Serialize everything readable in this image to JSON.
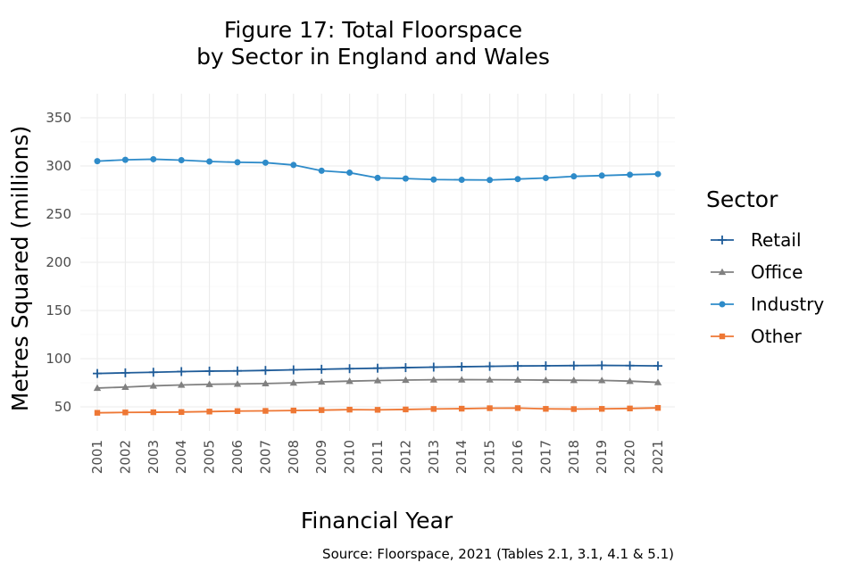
{
  "chart_data": {
    "type": "line",
    "title_lines": [
      "Figure 17: Total Floorspace",
      "by Sector in England and Wales"
    ],
    "xlabel": "Financial Year",
    "ylabel": "Metres Squared (millions)",
    "caption": "Source: Floorspace, 2021 (Tables 2.1, 3.1, 4.1 & 5.1)",
    "x": [
      "2001",
      "2002",
      "2003",
      "2004",
      "2005",
      "2006",
      "2007",
      "2008",
      "2009",
      "2010",
      "2011",
      "2012",
      "2013",
      "2014",
      "2015",
      "2016",
      "2017",
      "2018",
      "2019",
      "2020",
      "2021"
    ],
    "yticks": [
      50,
      100,
      150,
      200,
      250,
      300,
      350
    ],
    "ylim": [
      25,
      375
    ],
    "grid": true,
    "legend": {
      "title": "Sector",
      "position": "right"
    },
    "series": [
      {
        "name": "Retail",
        "color": "#1f5c99",
        "marker": "plus",
        "values": [
          84.6,
          85.3,
          85.9,
          86.6,
          87.1,
          87.3,
          87.8,
          88.4,
          89.0,
          89.6,
          90.1,
          90.7,
          91.2,
          91.6,
          92.0,
          92.4,
          92.6,
          92.8,
          93.0,
          92.8,
          92.5
        ]
      },
      {
        "name": "Office",
        "color": "#808080",
        "marker": "triangle",
        "values": [
          69.5,
          70.5,
          71.8,
          72.7,
          73.4,
          73.7,
          74.2,
          74.9,
          75.9,
          76.7,
          77.3,
          77.8,
          78.1,
          78.2,
          78.1,
          78.0,
          77.7,
          77.6,
          77.4,
          76.7,
          75.4
        ]
      },
      {
        "name": "Industry",
        "color": "#2e8bc9",
        "marker": "circle",
        "values": [
          305.0,
          306.4,
          307.0,
          306.0,
          304.6,
          303.8,
          303.4,
          301.0,
          295.0,
          293.0,
          287.6,
          286.9,
          285.9,
          285.6,
          285.4,
          286.4,
          287.5,
          289.2,
          290.0,
          290.9,
          291.6
        ]
      },
      {
        "name": "Other",
        "color": "#ee7734",
        "marker": "square",
        "values": [
          43.8,
          44.2,
          44.4,
          44.6,
          45.1,
          45.6,
          45.8,
          46.2,
          46.6,
          47.1,
          46.9,
          47.3,
          47.8,
          48.1,
          48.6,
          48.7,
          47.9,
          47.7,
          47.9,
          48.3,
          48.9
        ]
      }
    ]
  }
}
